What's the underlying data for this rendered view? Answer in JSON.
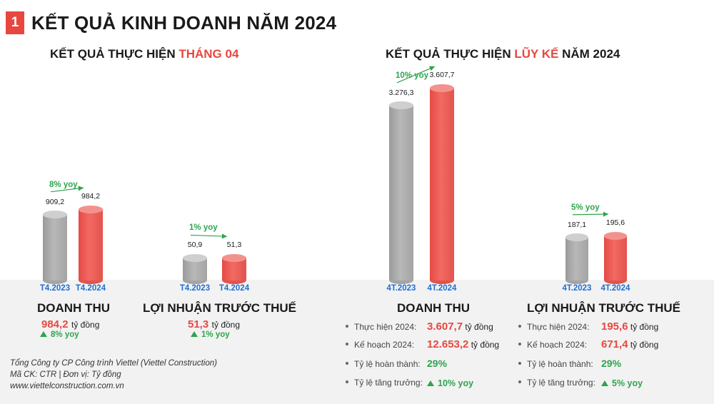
{
  "header": {
    "badge": "1",
    "title": "KẾT QUẢ KINH DOANH NĂM 2024"
  },
  "left_section": {
    "title_prefix": "KẾT QUẢ THỰC HIỆN ",
    "title_highlight": "THÁNG 04"
  },
  "right_section": {
    "title_prefix": "KẾT QUẢ THỰC HIỆN ",
    "title_highlight": "LŨY KẾ",
    "title_suffix": " NĂM 2024"
  },
  "colors": {
    "accent_red": "#e8473f",
    "bar_gray": "#a8a8a8",
    "bar_red": "#ef5f58",
    "category_blue": "#1f6fd1",
    "growth_green": "#2ea44f"
  },
  "chart_data": [
    {
      "type": "bar",
      "categories": [
        "T4.2023",
        "T4.2024"
      ],
      "values": [
        909.2,
        984.2
      ],
      "value_labels": [
        "909,2",
        "984,2"
      ],
      "growth_label": "8% yoy"
    },
    {
      "type": "bar",
      "categories": [
        "T4.2023",
        "T4.2024"
      ],
      "values": [
        50.9,
        51.3
      ],
      "value_labels": [
        "50,9",
        "51,3"
      ],
      "growth_label": "1% yoy"
    },
    {
      "type": "bar",
      "categories": [
        "4T.2023",
        "4T.2024"
      ],
      "values": [
        3276.3,
        3607.7
      ],
      "value_labels": [
        "3.276,3",
        "3.607,7"
      ],
      "growth_label": "10% yoy"
    },
    {
      "type": "bar",
      "categories": [
        "4T.2023",
        "4T.2024"
      ],
      "values": [
        187.1,
        195.6
      ],
      "value_labels": [
        "187,1",
        "195,6"
      ],
      "growth_label": "5% yoy"
    }
  ],
  "summary_left": {
    "revenue": {
      "title": "DOANH THU",
      "value": "984,2",
      "unit": "tỷ đồng",
      "yoy": "8% yoy"
    },
    "profit": {
      "title": "LỢI NHUẬN TRƯỚC THUẾ",
      "value": "51,3",
      "unit": "tỷ đồng",
      "yoy": "1% yoy"
    }
  },
  "summary_right": {
    "revenue": {
      "title": "DOANH THU",
      "rows": [
        {
          "label": "Thực hiện 2024:",
          "value": "3.607,7",
          "unit": "tỷ đồng"
        },
        {
          "label": "Kế hoạch 2024:",
          "value": "12.653,2",
          "unit": "tỷ đồng"
        },
        {
          "label": "Tỷ lệ hoàn thành:",
          "value": "29%",
          "unit": ""
        },
        {
          "label": "Tỷ lệ tăng trưởng:",
          "value": "10% yoy",
          "unit": ""
        }
      ]
    },
    "profit": {
      "title": "LỢI NHUẬN TRƯỚC THUẾ",
      "rows": [
        {
          "label": "Thực hiện 2024:",
          "value": "195,6",
          "unit": "tỷ đồng"
        },
        {
          "label": "Kế hoạch 2024:",
          "value": "671,4",
          "unit": "tỷ đồng"
        },
        {
          "label": "Tỷ lệ hoàn thành:",
          "value": "29%",
          "unit": ""
        },
        {
          "label": "Tỷ lệ tăng trưởng:",
          "value": "5% yoy",
          "unit": ""
        }
      ]
    }
  },
  "footer": {
    "line1": "Tổng Công ty CP Công trình Viettel (Viettel Construction)",
    "line2": "Mã CK: CTR  |  Đơn vị: Tỷ đồng",
    "line3": "www.viettelconstruction.com.vn"
  }
}
